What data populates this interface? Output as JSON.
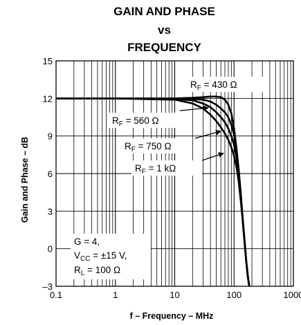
{
  "title": {
    "line1": "GAIN AND PHASE",
    "line2": "vs",
    "line3": "FREQUENCY"
  },
  "chart_data": {
    "type": "line",
    "x_scale": "log",
    "xlim": [
      0.1,
      1000
    ],
    "ylim": [
      -3,
      15
    ],
    "grid": true,
    "xlabel": "f – Frequency – MHz",
    "ylabel": "Gain and Phase – dB",
    "x_ticks": [
      "0.1",
      "1",
      "10",
      "100",
      "1000"
    ],
    "y_ticks": [
      "–3",
      "0",
      "3",
      "6",
      "9",
      "12",
      "15"
    ],
    "series": [
      {
        "name": "RF = 430 Ω",
        "label_main": "R",
        "label_sub": "F",
        "label_rest": " = 430 Ω",
        "x": [
          0.1,
          1,
          10,
          20,
          30,
          40,
          50,
          60,
          70,
          80,
          90,
          100,
          110,
          120,
          130,
          140,
          150,
          160,
          170,
          180
        ],
        "y": [
          12.0,
          12.0,
          12.0,
          12.05,
          12.1,
          12.15,
          12.15,
          12.1,
          11.9,
          11.5,
          10.8,
          9.6,
          8.0,
          6.2,
          4.2,
          2.2,
          0.5,
          -1.0,
          -2.2,
          -3.0
        ]
      },
      {
        "name": "RF = 560 Ω",
        "label_main": "R",
        "label_sub": "F",
        "label_rest": " = 560 Ω",
        "x": [
          0.1,
          1,
          10,
          20,
          30,
          40,
          50,
          60,
          70,
          80,
          90,
          100,
          110,
          120,
          130,
          140,
          150,
          160,
          170,
          180
        ],
        "y": [
          12.0,
          12.0,
          12.0,
          11.95,
          11.9,
          11.75,
          11.5,
          11.2,
          10.9,
          10.5,
          9.9,
          9.1,
          7.9,
          6.3,
          4.4,
          2.4,
          0.7,
          -0.9,
          -2.1,
          -3.0
        ]
      },
      {
        "name": "RF = 750 Ω",
        "label_main": "R",
        "label_sub": "F",
        "label_rest": " = 750 Ω",
        "x": [
          0.1,
          1,
          10,
          20,
          30,
          40,
          50,
          60,
          70,
          80,
          90,
          100,
          110,
          120,
          130,
          140,
          150,
          160,
          170,
          180
        ],
        "y": [
          12.0,
          12.0,
          11.95,
          11.85,
          11.6,
          11.3,
          10.9,
          10.5,
          10.1,
          9.6,
          9.0,
          8.3,
          7.3,
          5.9,
          4.2,
          2.4,
          0.7,
          -0.9,
          -2.1,
          -3.0
        ]
      },
      {
        "name": "RF = 1 kΩ",
        "label_main": "R",
        "label_sub": "F",
        "label_rest": " = 1 kΩ",
        "x": [
          0.1,
          1,
          10,
          20,
          30,
          40,
          50,
          60,
          70,
          80,
          90,
          100,
          110,
          120,
          130,
          140,
          150,
          160,
          170,
          180
        ],
        "y": [
          12.0,
          12.0,
          11.9,
          11.6,
          11.2,
          10.7,
          10.2,
          9.7,
          9.2,
          8.7,
          8.1,
          7.4,
          6.5,
          5.3,
          3.8,
          2.2,
          0.6,
          -0.9,
          -2.1,
          -3.0
        ]
      }
    ],
    "conditions": [
      "G = 4,",
      "V",
      "CC",
      " = ±15 V,",
      "R",
      "L",
      " = 100 Ω"
    ]
  }
}
